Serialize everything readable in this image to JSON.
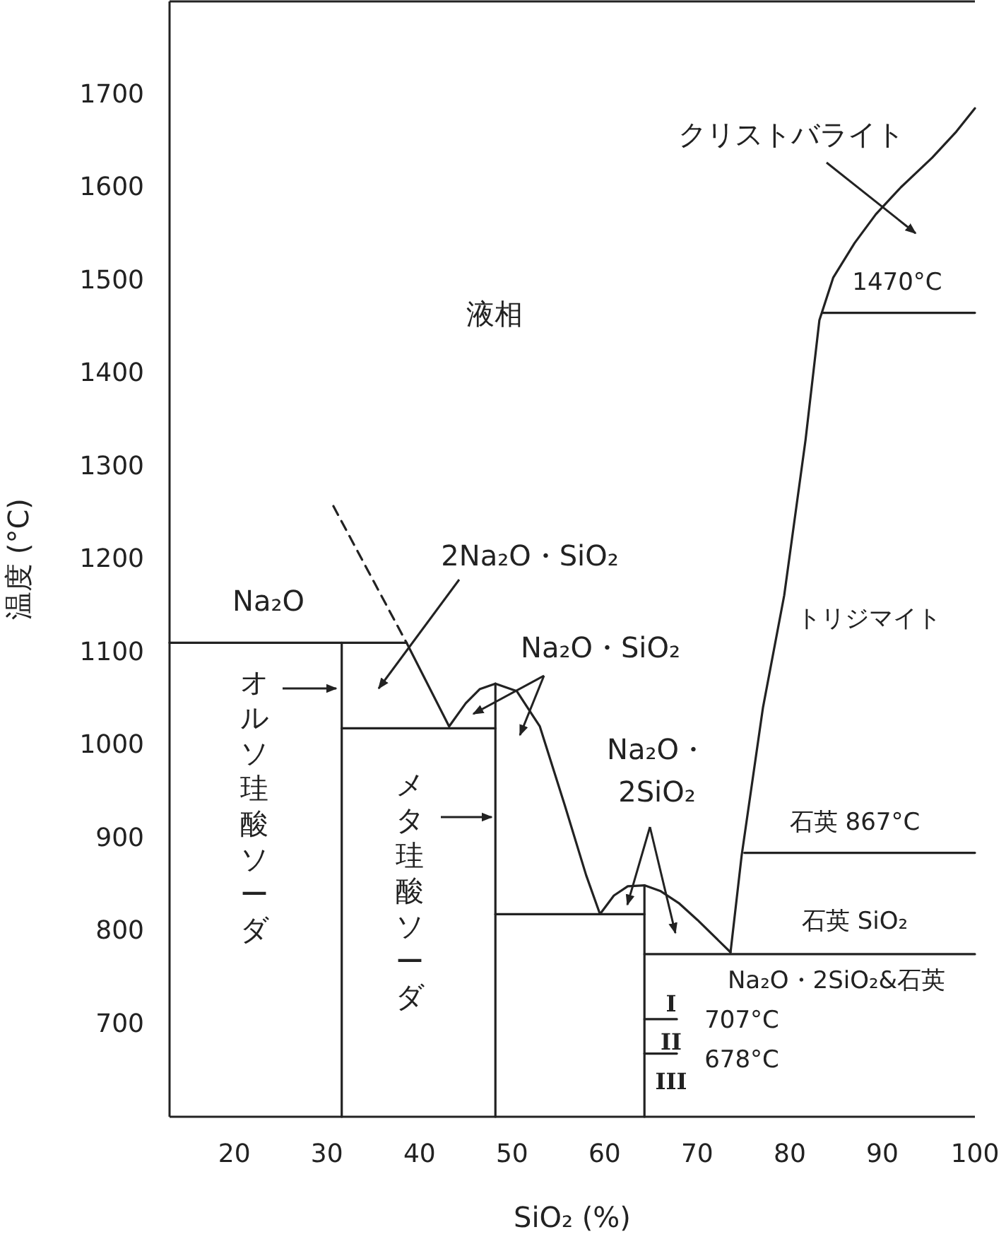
{
  "chart_data": {
    "type": "line",
    "xlabel": "SiO₂ (%)",
    "ylabel": "温度 (°C)",
    "xlim": [
      13,
      100
    ],
    "ylim": [
      600,
      1800
    ],
    "xticks": [
      20,
      30,
      40,
      50,
      60,
      70,
      80,
      90,
      100
    ],
    "yticks": [
      700,
      800,
      900,
      1000,
      1100,
      1200,
      1300,
      1400,
      1500,
      1600,
      1700
    ],
    "series": [
      {
        "color": "#222222",
        "x": [
          13,
          38.6
        ],
        "values": [
          1110,
          1110
        ]
      },
      {
        "color": "#222222",
        "line_style": "dashed",
        "x": [
          30.7,
          38.6
        ],
        "values": [
          1257,
          1110
        ]
      },
      {
        "color": "#222222",
        "x": [
          38.6,
          43.2,
          45,
          46.5,
          48.2,
          50.5,
          53,
          55.7,
          58,
          59.5
        ],
        "values": [
          1110,
          1020,
          1045,
          1060,
          1066,
          1058,
          1020,
          935,
          860,
          818
        ]
      },
      {
        "color": "#222222",
        "x": [
          31.6,
          31.6
        ],
        "values": [
          1110,
          600
        ]
      },
      {
        "color": "#222222",
        "x": [
          31.6,
          48.2
        ],
        "values": [
          1018,
          1018
        ]
      },
      {
        "color": "#222222",
        "x": [
          48.2,
          48.2
        ],
        "values": [
          1066,
          600
        ]
      },
      {
        "color": "#222222",
        "x": [
          48.2,
          64.3
        ],
        "values": [
          818,
          818
        ]
      },
      {
        "color": "#222222",
        "x": [
          59.5,
          61,
          62.5,
          64.3,
          66,
          68,
          70,
          73.6
        ],
        "values": [
          818,
          838,
          848,
          849,
          843,
          830,
          812,
          777
        ]
      },
      {
        "color": "#222222",
        "x": [
          64.3,
          64.3
        ],
        "values": [
          849,
          600
        ]
      },
      {
        "color": "#222222",
        "x": [
          64.3,
          100
        ],
        "values": [
          775,
          775
        ]
      },
      {
        "color": "#222222",
        "x": [
          73.6,
          74.8,
          77.1,
          79.4,
          81.7,
          83.2,
          84.7,
          87,
          89.3,
          92,
          95.4,
          98,
          100
        ],
        "values": [
          777,
          881,
          1040,
          1161,
          1328,
          1457,
          1503,
          1540,
          1571,
          1600,
          1632,
          1660,
          1685
        ]
      },
      {
        "color": "#222222",
        "x": [
          83.5,
          100
        ],
        "values": [
          1465,
          1465
        ]
      },
      {
        "color": "#222222",
        "x": [
          75.1,
          100
        ],
        "values": [
          884,
          884
        ]
      },
      {
        "color": "#222222",
        "x": [
          64.3,
          67.8
        ],
        "values": [
          705,
          705
        ]
      },
      {
        "color": "#222222",
        "x": [
          64.3,
          67.8
        ],
        "values": [
          668,
          668
        ]
      }
    ],
    "annotations": [
      "液相",
      "Na₂O",
      "オルソ珪酸ソーダ",
      "メタ珪酸ソーダ",
      "2Na₂O・SiO₂",
      "Na₂O・SiO₂",
      "Na₂O・\n2SiO₂",
      "クリストバライト",
      "1470°C",
      "トリジマイト",
      "石英 867°C",
      "石英 SiO₂",
      "Na₂O・2SiO₂&石英",
      "I",
      "707°C",
      "II",
      "678°C",
      "III"
    ]
  }
}
